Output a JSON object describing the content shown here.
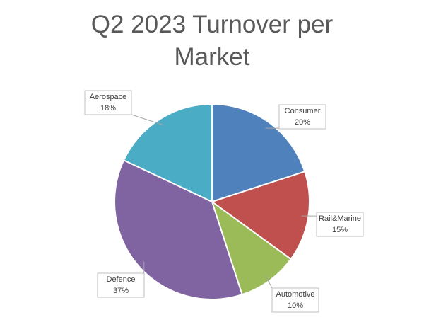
{
  "chart_data": {
    "type": "pie",
    "title": "Q2 2023 Turnover per Market",
    "categories": [
      "Consumer",
      "Rail&Marine",
      "Automotive",
      "Defence",
      "Aerospace"
    ],
    "values": [
      20,
      15,
      10,
      37,
      18
    ],
    "value_labels": [
      "20%",
      "15%",
      "10%",
      "37%",
      "18%"
    ],
    "colors": [
      "#4f81bd",
      "#c0504d",
      "#9bbb59",
      "#8064a2",
      "#4bacc6"
    ]
  }
}
